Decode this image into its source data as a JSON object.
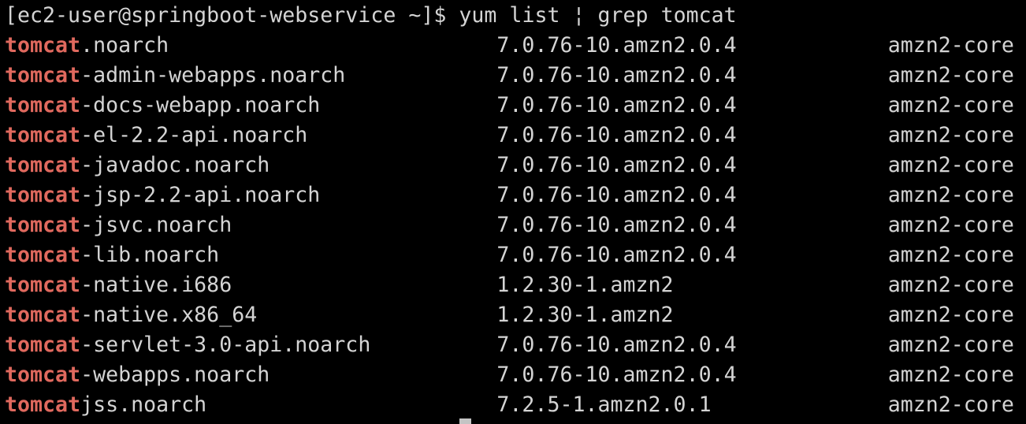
{
  "colors": {
    "background": "#000000",
    "foreground": "#d4d4d4",
    "grep_match": "#e0695e",
    "cursor": "#c4c4c4"
  },
  "terminal": {
    "prompt": "[ec2-user@springboot-webservice ~]$ ",
    "command": "yum list ¦ grep tomcat",
    "rows": [
      {
        "match": "tomcat",
        "rest": ".noarch",
        "version": "7.0.76-10.amzn2.0.4",
        "repo": "amzn2-core"
      },
      {
        "match": "tomcat",
        "rest": "-admin-webapps.noarch",
        "version": "7.0.76-10.amzn2.0.4",
        "repo": "amzn2-core"
      },
      {
        "match": "tomcat",
        "rest": "-docs-webapp.noarch",
        "version": "7.0.76-10.amzn2.0.4",
        "repo": "amzn2-core"
      },
      {
        "match": "tomcat",
        "rest": "-el-2.2-api.noarch",
        "version": "7.0.76-10.amzn2.0.4",
        "repo": "amzn2-core"
      },
      {
        "match": "tomcat",
        "rest": "-javadoc.noarch",
        "version": "7.0.76-10.amzn2.0.4",
        "repo": "amzn2-core"
      },
      {
        "match": "tomcat",
        "rest": "-jsp-2.2-api.noarch",
        "version": "7.0.76-10.amzn2.0.4",
        "repo": "amzn2-core"
      },
      {
        "match": "tomcat",
        "rest": "-jsvc.noarch",
        "version": "7.0.76-10.amzn2.0.4",
        "repo": "amzn2-core"
      },
      {
        "match": "tomcat",
        "rest": "-lib.noarch",
        "version": "7.0.76-10.amzn2.0.4",
        "repo": "amzn2-core"
      },
      {
        "match": "tomcat",
        "rest": "-native.i686",
        "version": "1.2.30-1.amzn2",
        "repo": "amzn2-core"
      },
      {
        "match": "tomcat",
        "rest": "-native.x86_64",
        "version": "1.2.30-1.amzn2",
        "repo": "amzn2-core"
      },
      {
        "match": "tomcat",
        "rest": "-servlet-3.0-api.noarch",
        "version": "7.0.76-10.amzn2.0.4",
        "repo": "amzn2-core"
      },
      {
        "match": "tomcat",
        "rest": "-webapps.noarch",
        "version": "7.0.76-10.amzn2.0.4",
        "repo": "amzn2-core"
      },
      {
        "match": "tomcat",
        "rest": "jss.noarch",
        "version": "7.2.5-1.amzn2.0.1",
        "repo": "amzn2-core"
      }
    ]
  }
}
